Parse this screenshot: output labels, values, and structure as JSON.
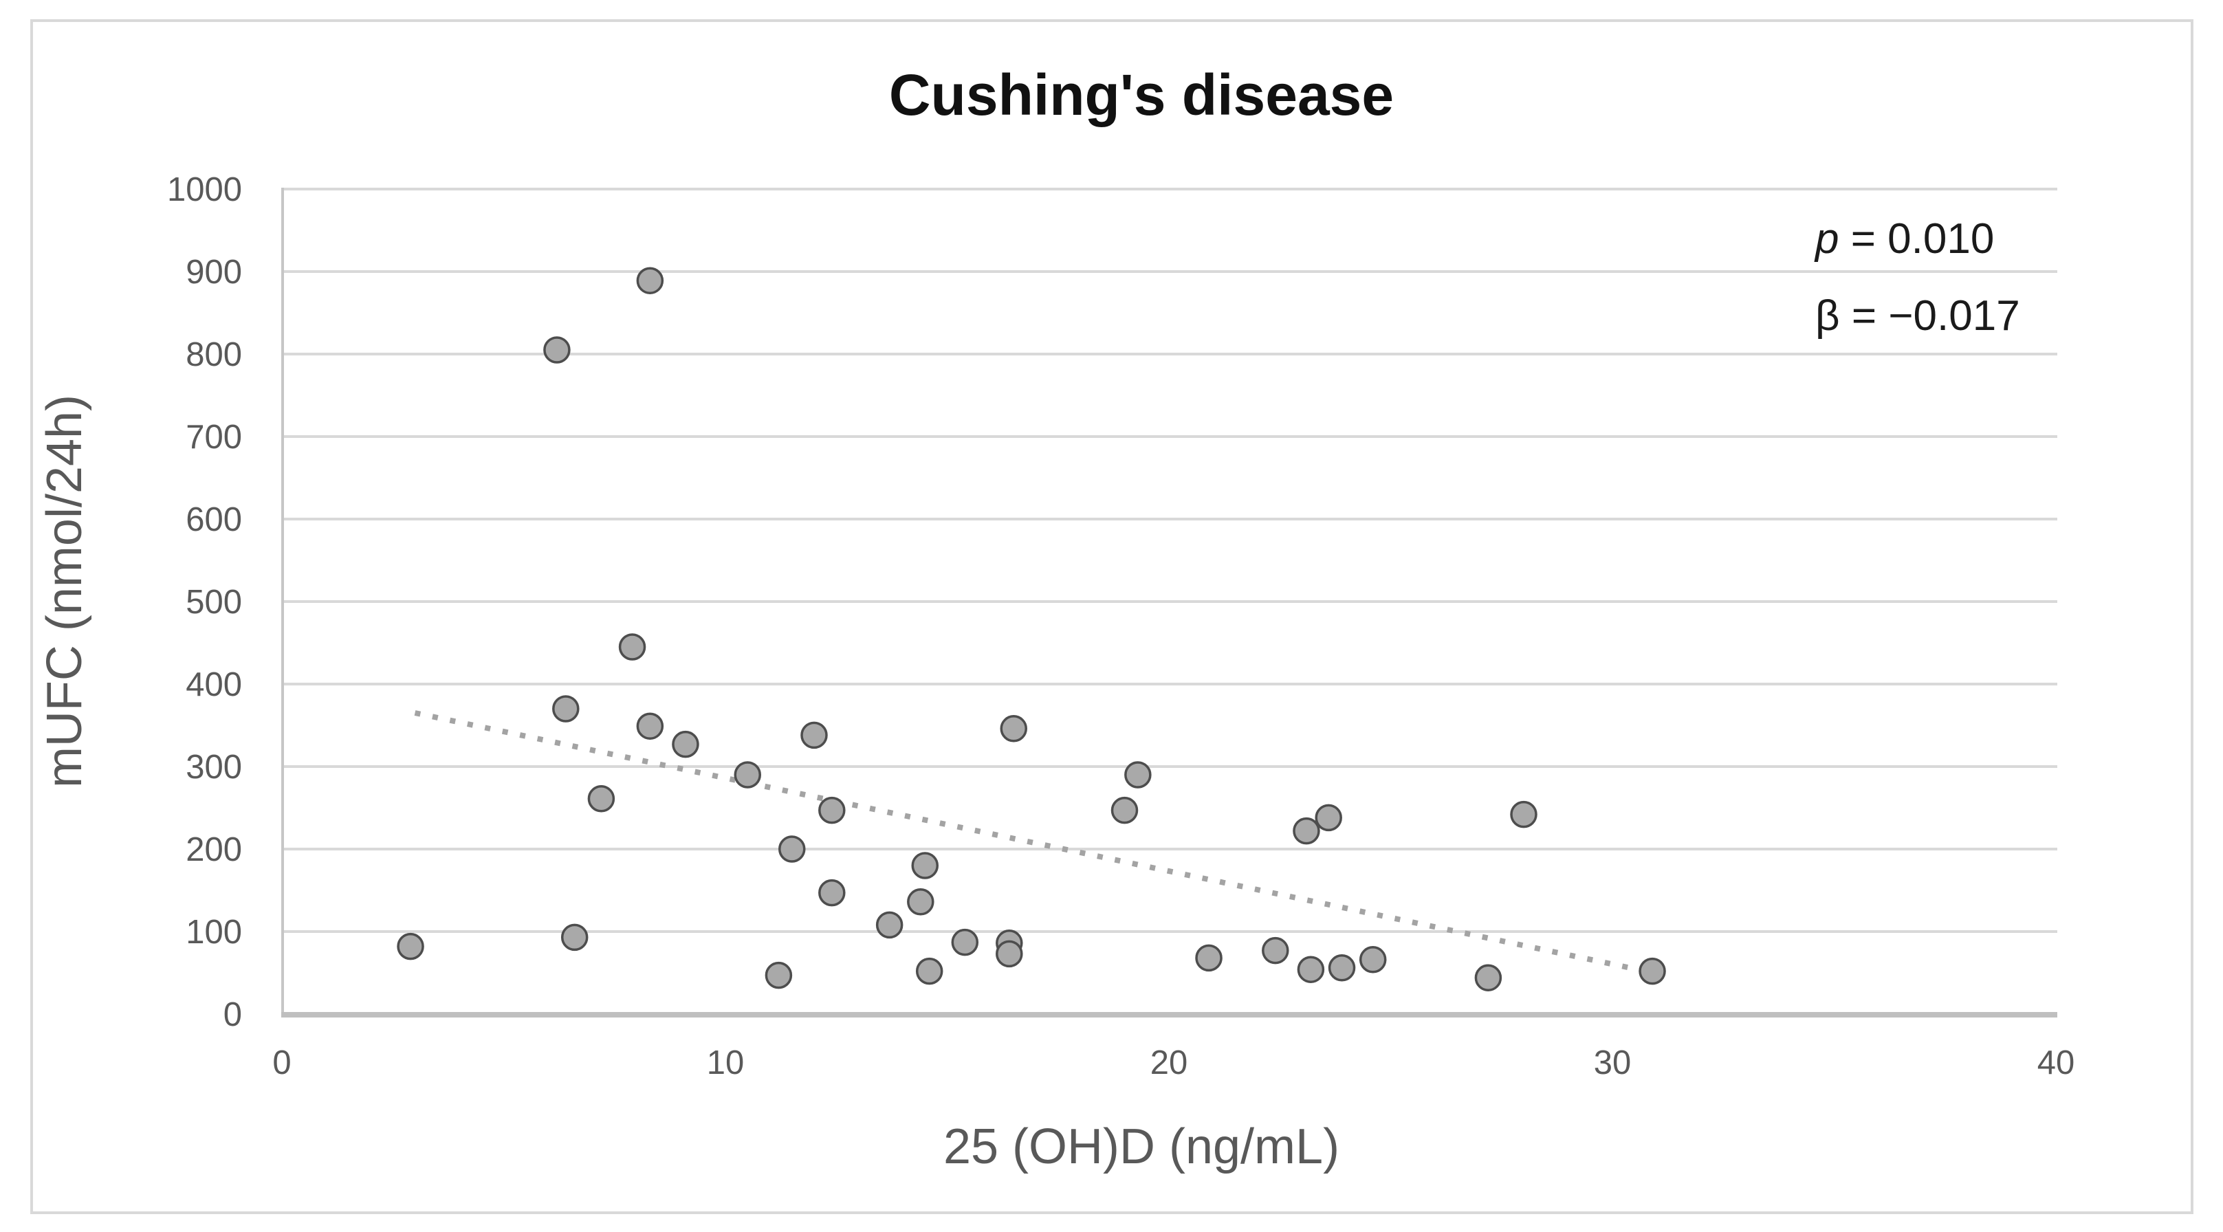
{
  "chart_data": {
    "type": "scatter",
    "title": "Cushing's disease",
    "xlabel": "25 (OH)D (ng/mL)",
    "ylabel": "mUFC (nmol/24h)",
    "xlim": [
      0,
      40
    ],
    "ylim": [
      0,
      1000
    ],
    "x_ticks": [
      0,
      10,
      20,
      30,
      40
    ],
    "y_ticks": [
      0,
      100,
      200,
      300,
      400,
      500,
      600,
      700,
      800,
      900,
      1000
    ],
    "grid": true,
    "legend": "none",
    "points": [
      [
        2.9,
        82
      ],
      [
        6.2,
        805
      ],
      [
        6.4,
        370
      ],
      [
        6.6,
        93
      ],
      [
        7.2,
        261
      ],
      [
        7.9,
        445
      ],
      [
        8.3,
        889
      ],
      [
        8.3,
        349
      ],
      [
        9.1,
        327
      ],
      [
        10.5,
        290
      ],
      [
        11.2,
        47
      ],
      [
        11.5,
        200
      ],
      [
        12.0,
        338
      ],
      [
        12.4,
        247
      ],
      [
        12.4,
        147
      ],
      [
        13.7,
        108
      ],
      [
        14.4,
        136
      ],
      [
        14.5,
        180
      ],
      [
        14.6,
        52
      ],
      [
        15.4,
        87
      ],
      [
        16.4,
        86
      ],
      [
        16.4,
        73
      ],
      [
        16.5,
        346
      ],
      [
        19.0,
        247
      ],
      [
        19.3,
        290
      ],
      [
        20.9,
        68
      ],
      [
        22.4,
        77
      ],
      [
        23.1,
        222
      ],
      [
        23.2,
        54
      ],
      [
        23.6,
        238
      ],
      [
        23.9,
        56
      ],
      [
        24.6,
        66
      ],
      [
        27.2,
        44
      ],
      [
        28.0,
        242
      ],
      [
        30.9,
        52
      ]
    ],
    "trendline": {
      "style": "dotted",
      "x1": 3.0,
      "y1": 365,
      "x2": 30.4,
      "y2": 56
    },
    "annotations": [
      "p = 0.010",
      "β = −0.017"
    ],
    "annotation_parts": {
      "line1": {
        "symbol": "p",
        "rest": " = 0.010"
      },
      "line2": {
        "symbol": "β",
        "rest": " = −0.017"
      }
    }
  },
  "colors": {
    "marker_fill": "#a9a9a9",
    "marker_stroke": "#4d4d4d",
    "gridline": "#d9d9d9",
    "y_axis_line": "#c6c6c6",
    "x_axis_line": "#bfbfbf",
    "trend": "#a3a3a3",
    "tick_text": "#595959",
    "axis_title_text": "#595959",
    "title_text": "#111111",
    "annotation_text": "#1a1a1a",
    "figure_border": "#d9d9d9",
    "background": "#ffffff"
  }
}
